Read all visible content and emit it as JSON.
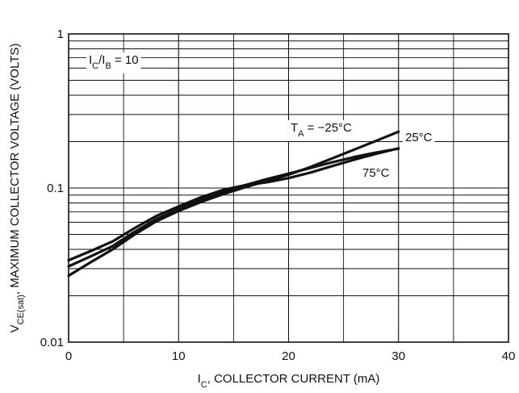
{
  "chart_data": {
    "type": "line",
    "title": "",
    "xlabel": "I<sub>C</sub>, COLLECTOR CURRENT (mA)",
    "xlabel_main": "I",
    "xlabel_sub": "C",
    "xlabel_rest": ", COLLECTOR CURRENT (mA)",
    "ylabel_main": "V",
    "ylabel_sub": "CE(sat)",
    "ylabel_rest": ", MAXIMUM COLLECTOR VOLTAGE (VOLTS)",
    "xlim": [
      0,
      40
    ],
    "ylim": [
      0.01,
      1
    ],
    "yscale": "log",
    "grid": true,
    "x_ticks": [
      0,
      10,
      20,
      30,
      40
    ],
    "x_tick_labels": [
      "0",
      "10",
      "20",
      "30",
      "40"
    ],
    "y_ticks": [
      0.01,
      0.1,
      1
    ],
    "y_tick_labels": [
      "0.01",
      "0.1",
      "1"
    ],
    "condition_label": {
      "main1": "I",
      "sub1": "C",
      "mid": "/I",
      "sub2": "B",
      "rest": " = 10"
    },
    "series": [
      {
        "name": "TA = −25°C",
        "label_main": "T",
        "label_sub": "A",
        "label_rest": " = −25°C",
        "x": [
          0,
          2,
          4,
          6,
          8,
          10,
          12,
          14,
          16,
          18,
          20,
          22,
          24,
          26,
          28,
          30
        ],
        "y": [
          0.027,
          0.033,
          0.04,
          0.05,
          0.061,
          0.071,
          0.081,
          0.091,
          0.101,
          0.111,
          0.122,
          0.137,
          0.156,
          0.178,
          0.203,
          0.232
        ]
      },
      {
        "name": "25°C",
        "label_main": "25°C",
        "x": [
          0,
          2,
          4,
          6,
          8,
          10,
          12,
          14,
          16,
          18,
          20,
          22,
          24,
          26,
          28,
          30
        ],
        "y": [
          0.031,
          0.036,
          0.042,
          0.052,
          0.063,
          0.073,
          0.084,
          0.094,
          0.104,
          0.114,
          0.124,
          0.135,
          0.147,
          0.159,
          0.17,
          0.18
        ]
      },
      {
        "name": "75°C",
        "label_main": "75°C",
        "x": [
          0,
          2,
          4,
          6,
          8,
          10,
          12,
          14,
          16,
          18,
          20,
          22,
          24,
          26,
          28,
          30
        ],
        "y": [
          0.034,
          0.039,
          0.045,
          0.055,
          0.066,
          0.076,
          0.087,
          0.097,
          0.104,
          0.109,
          0.116,
          0.126,
          0.139,
          0.153,
          0.167,
          0.181
        ]
      }
    ]
  }
}
